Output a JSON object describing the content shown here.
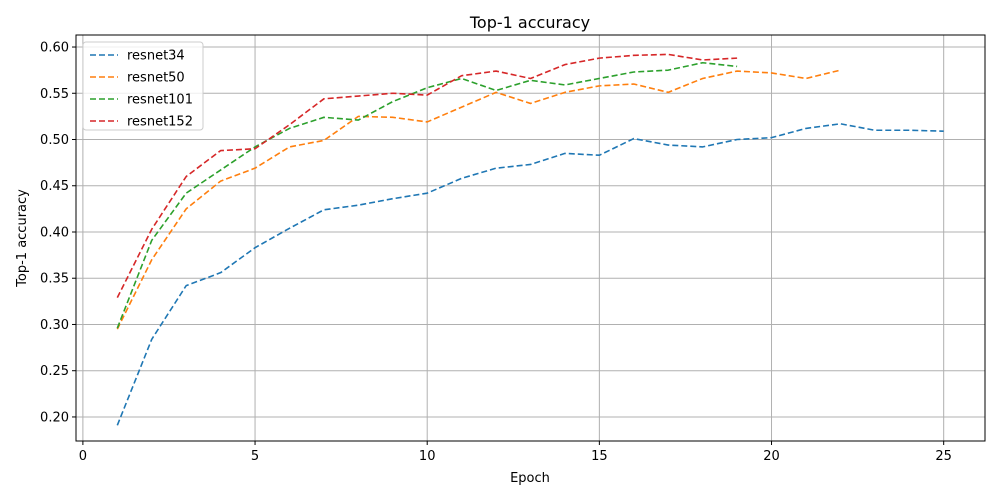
{
  "chart_data": {
    "type": "line",
    "title": "Top-1 accuracy",
    "xlabel": "Epoch",
    "ylabel": "Top-1 accuracy",
    "xlim": [
      -0.2,
      26.2
    ],
    "ylim": [
      0.174,
      0.613
    ],
    "xticks": [
      0,
      5,
      10,
      15,
      20,
      25
    ],
    "yticks": [
      0.2,
      0.25,
      0.3,
      0.35,
      0.4,
      0.45,
      0.5,
      0.55,
      0.6
    ],
    "xtick_labels": [
      "0",
      "5",
      "10",
      "15",
      "20",
      "25"
    ],
    "ytick_labels": [
      "0.20",
      "0.25",
      "0.30",
      "0.35",
      "0.40",
      "0.45",
      "0.50",
      "0.55",
      "0.60"
    ],
    "grid": true,
    "legend_position": "top-left",
    "line_style": "dashed",
    "series": [
      {
        "name": "resnet34",
        "color": "#1f77b4",
        "x": [
          1,
          2,
          3,
          4,
          5,
          6,
          7,
          8,
          9,
          10,
          11,
          12,
          13,
          14,
          15,
          16,
          17,
          18,
          19,
          20,
          21,
          22,
          23,
          24,
          25
        ],
        "values": [
          0.191,
          0.284,
          0.342,
          0.356,
          0.383,
          0.404,
          0.424,
          0.429,
          0.436,
          0.442,
          0.458,
          0.469,
          0.473,
          0.485,
          0.483,
          0.501,
          0.494,
          0.492,
          0.5,
          0.502,
          0.512,
          0.517,
          0.51,
          0.51,
          0.509
        ]
      },
      {
        "name": "resnet50",
        "color": "#ff7f0e",
        "x": [
          1,
          2,
          3,
          4,
          5,
          6,
          7,
          8,
          9,
          10,
          11,
          12,
          13,
          14,
          15,
          16,
          17,
          18,
          19,
          20,
          21,
          22
        ],
        "values": [
          0.295,
          0.37,
          0.425,
          0.455,
          0.469,
          0.492,
          0.499,
          0.525,
          0.524,
          0.519,
          0.535,
          0.551,
          0.539,
          0.551,
          0.558,
          0.56,
          0.551,
          0.566,
          0.574,
          0.572,
          0.566,
          0.575
        ]
      },
      {
        "name": "resnet101",
        "color": "#2ca02c",
        "x": [
          1,
          2,
          3,
          4,
          5,
          6,
          7,
          8,
          9,
          10,
          11,
          12,
          13,
          14,
          15,
          16,
          17,
          18,
          19
        ],
        "values": [
          0.296,
          0.391,
          0.442,
          0.467,
          0.492,
          0.512,
          0.524,
          0.521,
          0.541,
          0.556,
          0.566,
          0.553,
          0.564,
          0.559,
          0.566,
          0.573,
          0.575,
          0.583,
          0.579
        ]
      },
      {
        "name": "resnet152",
        "color": "#d62728",
        "x": [
          1,
          2,
          3,
          4,
          5,
          6,
          7,
          8,
          9,
          10,
          11,
          12,
          13,
          14,
          15,
          16,
          17,
          18,
          19
        ],
        "values": [
          0.329,
          0.403,
          0.46,
          0.488,
          0.49,
          0.516,
          0.544,
          0.547,
          0.55,
          0.548,
          0.569,
          0.574,
          0.566,
          0.581,
          0.588,
          0.591,
          0.592,
          0.586,
          0.588
        ]
      }
    ]
  }
}
